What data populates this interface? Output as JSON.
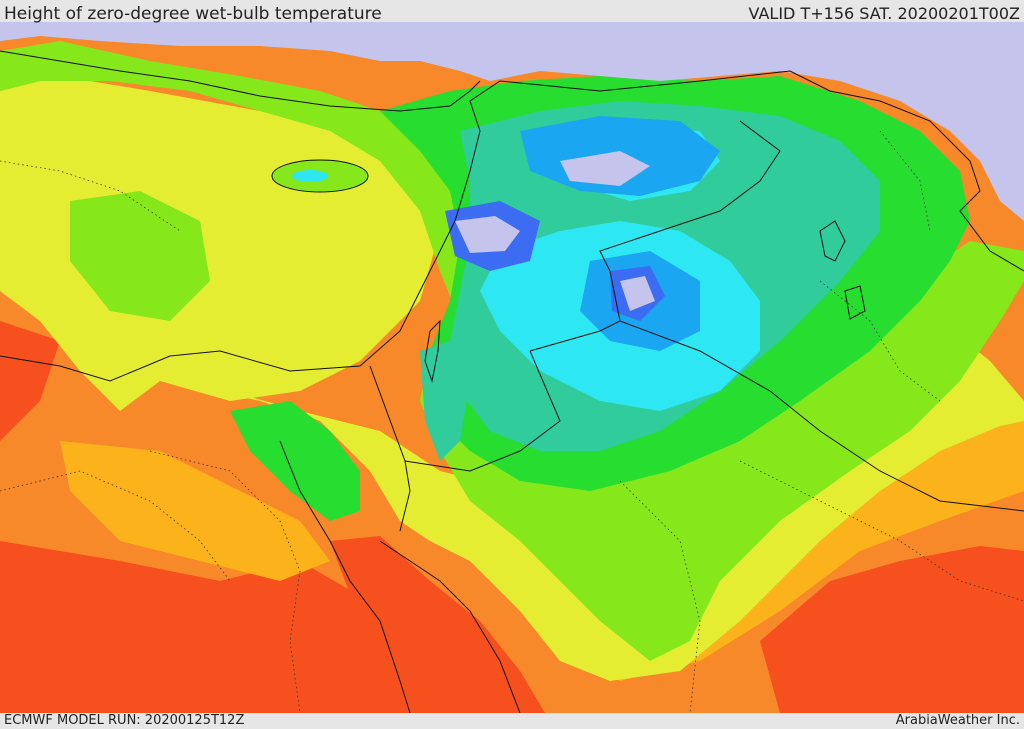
{
  "header": {
    "title": "Height of zero-degree wet-bulb temperature",
    "valid_time": "VALID T+156 SAT. 20200201T00Z"
  },
  "footer": {
    "model_run": "ECMWF MODEL RUN: 20200125T12Z",
    "credit": "ArabiaWeather Inc."
  },
  "map": {
    "palette": {
      "red": "#f5501e",
      "orange": "#f7892a",
      "amber": "#fbb21b",
      "yellow": "#e5ed32",
      "lime": "#86e81b",
      "green": "#27dd30",
      "teal": "#30cc9c",
      "cyan": "#2de8f3",
      "sky": "#1aa6f1",
      "blue": "#3b6cf1",
      "lavender": "#c4c4ec",
      "border": "#111111"
    }
  }
}
